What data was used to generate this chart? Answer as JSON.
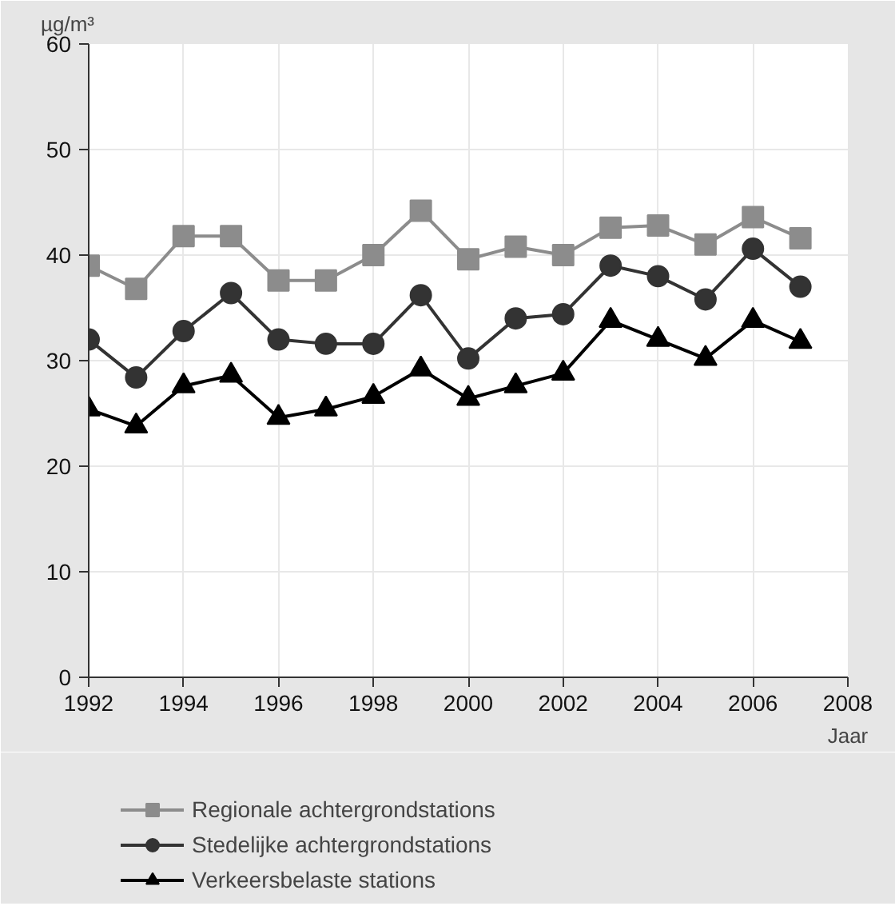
{
  "chart_data": {
    "type": "line",
    "ylabel": "µg/m³",
    "xlabel": "Jaar",
    "x": [
      1992,
      1993,
      1994,
      1995,
      1996,
      1997,
      1998,
      1999,
      2000,
      2001,
      2002,
      2003,
      2004,
      2005,
      2006,
      2007
    ],
    "series": [
      {
        "name": "Regionale achtergrondstations",
        "color": "#8c8c8c",
        "marker": "square",
        "values": [
          39,
          36.8,
          41.8,
          41.8,
          37.6,
          37.6,
          40,
          44.2,
          39.6,
          40.8,
          40,
          42.6,
          42.8,
          41,
          43.6,
          41.6
        ]
      },
      {
        "name": "Stedelijke achtergrondstations",
        "color": "#333333",
        "marker": "circle",
        "values": [
          32,
          28.4,
          32.8,
          36.4,
          32,
          31.6,
          31.6,
          36.2,
          30.2,
          34,
          34.4,
          39,
          38,
          35.8,
          40.6,
          37
        ]
      },
      {
        "name": "Verkeersbelaste stations",
        "color": "#000000",
        "marker": "triangle",
        "values": [
          25.4,
          23.8,
          27.6,
          28.6,
          24.6,
          25.4,
          26.6,
          29.2,
          26.4,
          27.6,
          28.8,
          33.8,
          32,
          30.2,
          33.8,
          31.8
        ]
      }
    ],
    "xlim": [
      1992,
      2008
    ],
    "xticks": [
      1992,
      1994,
      1996,
      1998,
      2000,
      2002,
      2004,
      2006,
      2008
    ],
    "ylim": [
      0,
      60
    ],
    "yticks": [
      0,
      10,
      20,
      30,
      40,
      50,
      60
    ],
    "grid": true,
    "legend": "bottom"
  }
}
